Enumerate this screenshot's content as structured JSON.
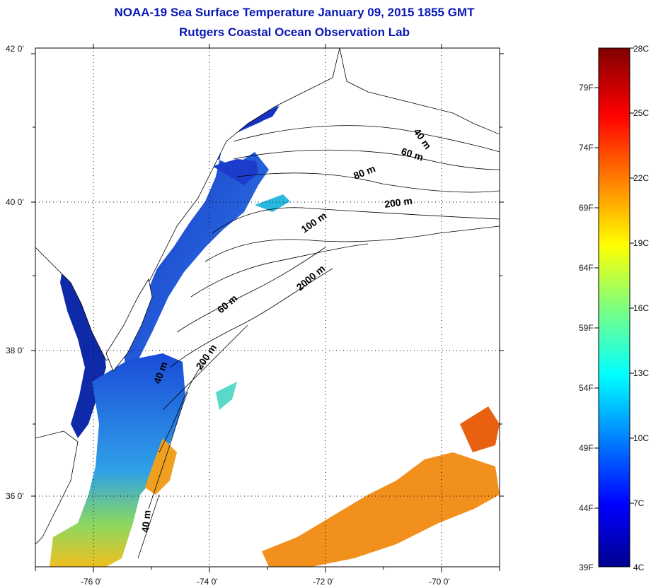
{
  "title": {
    "line1": "NOAA-19 Sea Surface Temperature January 09, 2015 1855 GMT",
    "line2": "Rutgers Coastal Ocean Observation Lab"
  },
  "map": {
    "lat_labels": [
      "42 0'",
      "40 0'",
      "38 0'",
      "36 0'"
    ],
    "lon_labels": [
      "-76 0'",
      "-74 0'",
      "-72 0'",
      "-70 0'"
    ],
    "lon_range": [
      -77.0,
      -69.0
    ],
    "lat_range": [
      35.0,
      42.0
    ],
    "grid": "dotted",
    "contours": [
      "40 m",
      "60 m",
      "80 m",
      "200 m",
      "100 m",
      "2000 m",
      "60 m",
      "200 m",
      "40 m",
      "40 m"
    ]
  },
  "colorbar": {
    "fahrenheit": [
      "79F",
      "74F",
      "69F",
      "64F",
      "59F",
      "54F",
      "49F",
      "44F",
      "39F"
    ],
    "celsius": [
      "28C",
      "25C",
      "22C",
      "19C",
      "16C",
      "13C",
      "10C",
      "7C",
      "4C"
    ],
    "range_c": [
      4,
      28
    ],
    "colormap": "jet"
  },
  "colors": {
    "title": "#0a18b4",
    "land": "#ffffff",
    "cold": "#1a2fc8",
    "warm": "#f08a10"
  }
}
